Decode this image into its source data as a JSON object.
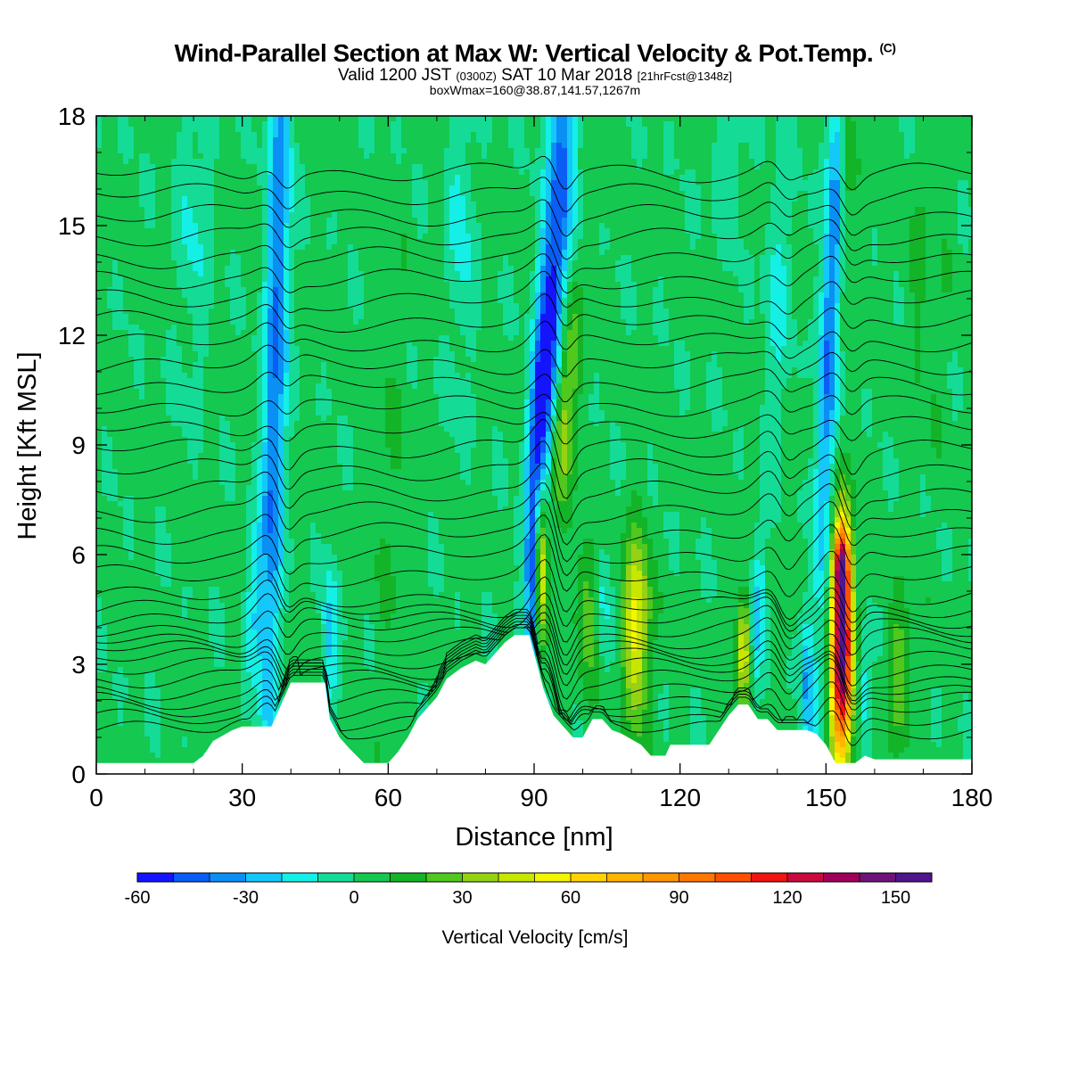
{
  "header": {
    "title": "Wind-Parallel Section at Max W: Vertical Velocity & Pot.Temp.",
    "copyright": "(C)",
    "valid_prefix": "Valid 1200 JST",
    "valid_utc": "(0300Z)",
    "valid_date": "SAT 10 Mar 2018",
    "forecast": "[21hrFcst@1348z]",
    "box_info": "boxWmax=160@38.87,141.57,1267m"
  },
  "chart_data": {
    "type": "heatmap",
    "xlabel": "Distance [nm]",
    "ylabel": "Height [Kft MSL]",
    "xlim": [
      0,
      180
    ],
    "ylim": [
      0,
      18
    ],
    "x_ticks": [
      0,
      30,
      60,
      90,
      120,
      150,
      180
    ],
    "y_ticks": [
      0,
      3,
      6,
      9,
      12,
      15,
      18
    ],
    "colorbar": {
      "label": "Vertical Velocity [cm/s]",
      "range": [
        -60,
        160
      ],
      "step": 10,
      "tick_labels": [
        -60,
        -30,
        0,
        30,
        60,
        90,
        120,
        150
      ],
      "colors": [
        "#1414ff",
        "#0a5ef5",
        "#0a8ff5",
        "#14c8fa",
        "#14f0e6",
        "#14dc96",
        "#14c850",
        "#14b428",
        "#50c81e",
        "#96d214",
        "#c8e600",
        "#f5f500",
        "#ffd200",
        "#ffb400",
        "#ff9600",
        "#ff7800",
        "#ff5000",
        "#f01414",
        "#c80a3c",
        "#a0005a",
        "#6e1478",
        "#50148c"
      ]
    },
    "terrain_kft": [
      [
        0,
        0.3
      ],
      [
        20,
        0.3
      ],
      [
        22,
        0.5
      ],
      [
        24,
        0.9
      ],
      [
        28,
        1.2
      ],
      [
        30,
        1.3
      ],
      [
        36,
        1.3
      ],
      [
        38,
        1.9
      ],
      [
        40,
        2.5
      ],
      [
        47,
        2.5
      ],
      [
        48,
        1.5
      ],
      [
        50,
        1.0
      ],
      [
        52,
        0.7
      ],
      [
        55,
        0.3
      ],
      [
        60,
        0.3
      ],
      [
        62,
        0.6
      ],
      [
        64,
        1.0
      ],
      [
        66,
        1.5
      ],
      [
        68,
        1.8
      ],
      [
        70,
        2.1
      ],
      [
        72,
        2.6
      ],
      [
        75,
        2.9
      ],
      [
        78,
        3.1
      ],
      [
        80,
        3.0
      ],
      [
        82,
        3.3
      ],
      [
        84,
        3.6
      ],
      [
        86,
        3.8
      ],
      [
        89,
        3.8
      ],
      [
        92,
        2.3
      ],
      [
        94,
        1.6
      ],
      [
        96,
        1.3
      ],
      [
        98,
        1.0
      ],
      [
        100,
        1.0
      ],
      [
        102,
        1.5
      ],
      [
        104,
        1.5
      ],
      [
        106,
        1.2
      ],
      [
        108,
        1.1
      ],
      [
        112,
        0.8
      ],
      [
        114,
        0.5
      ],
      [
        117,
        0.5
      ],
      [
        118,
        0.8
      ],
      [
        124,
        0.8
      ],
      [
        126,
        0.8
      ],
      [
        128,
        1.2
      ],
      [
        130,
        1.6
      ],
      [
        132,
        1.9
      ],
      [
        134,
        1.9
      ],
      [
        136,
        1.5
      ],
      [
        138,
        1.5
      ],
      [
        140,
        1.2
      ],
      [
        143,
        1.2
      ],
      [
        146,
        1.2
      ],
      [
        148,
        1.1
      ],
      [
        150,
        0.8
      ],
      [
        152,
        0.3
      ],
      [
        156,
        0.3
      ],
      [
        158,
        0.5
      ],
      [
        160,
        0.4
      ],
      [
        180,
        0.4
      ]
    ],
    "velocity_features": [
      {
        "x": 37,
        "y": 12.0,
        "sx": 1.6,
        "sy": 9.0,
        "tilt": 0.15,
        "w": -45
      },
      {
        "x": 33,
        "y": 5.0,
        "sx": 1.5,
        "sy": 2.0,
        "tilt": 0.4,
        "w": -20
      },
      {
        "x": 94,
        "y": 13.5,
        "sx": 2.0,
        "sy": 6.0,
        "tilt": 0.45,
        "w": -55
      },
      {
        "x": 91,
        "y": 9.8,
        "sx": 1.4,
        "sy": 2.2,
        "tilt": 0.4,
        "w": -35
      },
      {
        "x": 96,
        "y": 9.8,
        "sx": 1.7,
        "sy": 2.2,
        "tilt": 0.5,
        "w": 40
      },
      {
        "x": 91.5,
        "y": 5.8,
        "sx": 1.0,
        "sy": 1.6,
        "tilt": 0.0,
        "w": 60
      },
      {
        "x": 89.5,
        "y": 5.0,
        "sx": 0.8,
        "sy": 1.4,
        "tilt": 0.0,
        "w": -35
      },
      {
        "x": 111,
        "y": 4.0,
        "sx": 1.8,
        "sy": 1.8,
        "tilt": 0.0,
        "w": 55
      },
      {
        "x": 101,
        "y": 4.6,
        "sx": 1.6,
        "sy": 1.4,
        "tilt": 0.0,
        "w": 25
      },
      {
        "x": 104,
        "y": 5.0,
        "sx": 1.2,
        "sy": 1.2,
        "tilt": 0.0,
        "w": -15
      },
      {
        "x": 133,
        "y": 3.4,
        "sx": 1.0,
        "sy": 1.0,
        "tilt": 0.0,
        "w": 45
      },
      {
        "x": 136,
        "y": 4.6,
        "sx": 1.0,
        "sy": 1.6,
        "tilt": 0.2,
        "w": -25
      },
      {
        "x": 146,
        "y": 2.5,
        "sx": 0.9,
        "sy": 1.4,
        "tilt": 0.0,
        "w": -30
      },
      {
        "x": 153.3,
        "y": 3.4,
        "sx": 1.5,
        "sy": 2.2,
        "tilt": 0.05,
        "w": 150
      },
      {
        "x": 153,
        "y": 5.7,
        "sx": 1.1,
        "sy": 0.7,
        "tilt": 0.0,
        "w": 70
      },
      {
        "x": 151,
        "y": 13.0,
        "sx": 1.4,
        "sy": 6.0,
        "tilt": 0.3,
        "w": -45
      },
      {
        "x": 154,
        "y": 17.0,
        "sx": 1.2,
        "sy": 2.5,
        "tilt": 0.0,
        "w": 20
      },
      {
        "x": 165,
        "y": 2.8,
        "sx": 1.8,
        "sy": 1.4,
        "tilt": 0.0,
        "w": 25
      },
      {
        "x": 158,
        "y": 2.2,
        "sx": 1.0,
        "sy": 1.0,
        "tilt": 0.0,
        "w": -25
      },
      {
        "x": 48,
        "y": 3.5,
        "sx": 1.2,
        "sy": 1.6,
        "tilt": 0.0,
        "w": -25
      },
      {
        "x": 75,
        "y": 15.0,
        "sx": 2.0,
        "sy": 3.0,
        "tilt": 0.0,
        "w": -15
      },
      {
        "x": 140,
        "y": 13.0,
        "sx": 2.0,
        "sy": 3.0,
        "tilt": 0.2,
        "w": -15
      },
      {
        "x": 20,
        "y": 15.0,
        "sx": 2.5,
        "sy": 3.0,
        "tilt": 0.1,
        "w": -12
      },
      {
        "x": 130,
        "y": 17.0,
        "sx": 2.5,
        "sy": 1.5,
        "tilt": 0.0,
        "w": -12
      },
      {
        "x": 170,
        "y": 13.0,
        "sx": 3.0,
        "sy": 3.0,
        "tilt": 0.0,
        "w": 8
      },
      {
        "x": 60,
        "y": 8.0,
        "sx": 3.0,
        "sy": 4.0,
        "tilt": 0.0,
        "w": 6
      }
    ],
    "isentropes": {
      "count": 34,
      "base_kft": 1.2,
      "spacing_low_kft": 0.28,
      "spacing_high_kft": 0.58,
      "wave_sites": [
        {
          "x": 36,
          "amp": 0.6
        },
        {
          "x": 93,
          "amp": 1.0
        },
        {
          "x": 139,
          "amp": 0.5
        },
        {
          "x": 152,
          "amp": 0.7
        }
      ]
    }
  }
}
